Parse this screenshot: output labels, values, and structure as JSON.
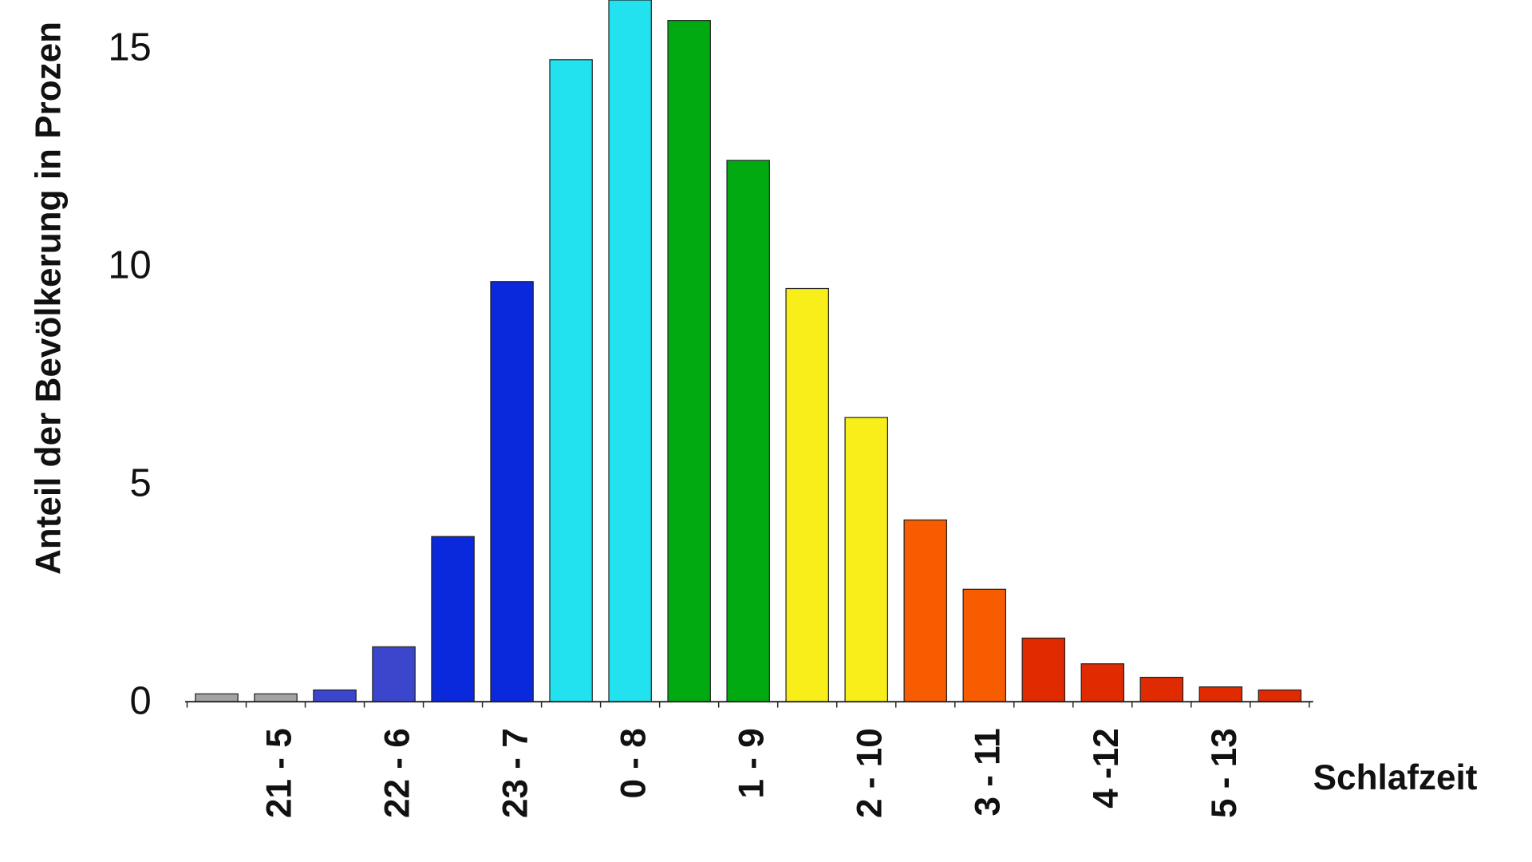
{
  "chart_data": {
    "type": "bar",
    "y_label": "Anteil der Bevölkerung in Prozen",
    "x_label": "Schlafzeit",
    "categories": [
      null,
      "21 - 5",
      null,
      "22 - 6",
      null,
      "23 - 7",
      null,
      "0 - 8",
      null,
      "1 - 9",
      null,
      "2 - 10",
      null,
      "3 - 11",
      null,
      "4 -12",
      null,
      "5 - 13",
      null
    ],
    "values": [
      0.18,
      0.18,
      0.27,
      1.26,
      3.79,
      9.64,
      14.73,
      16.1,
      15.63,
      12.42,
      9.48,
      6.52,
      4.17,
      2.58,
      1.46,
      0.87,
      0.56,
      0.34,
      0.27
    ],
    "colors": [
      "#a3a3a3",
      "#a3a3a3",
      "#3c46cc",
      "#3c46cc",
      "#0a28dc",
      "#0a28dc",
      "#22e2f0",
      "#22e2f0",
      "#00aa10",
      "#00aa10",
      "#f8ee1a",
      "#f8ee1a",
      "#f85c00",
      "#f85c00",
      "#e02a00",
      "#e02a00",
      "#e02a00",
      "#e02a00",
      "#e02a00"
    ],
    "ylim": [
      0,
      16.1
    ],
    "yticks": [
      0,
      5,
      10,
      15
    ],
    "grid": false
  }
}
